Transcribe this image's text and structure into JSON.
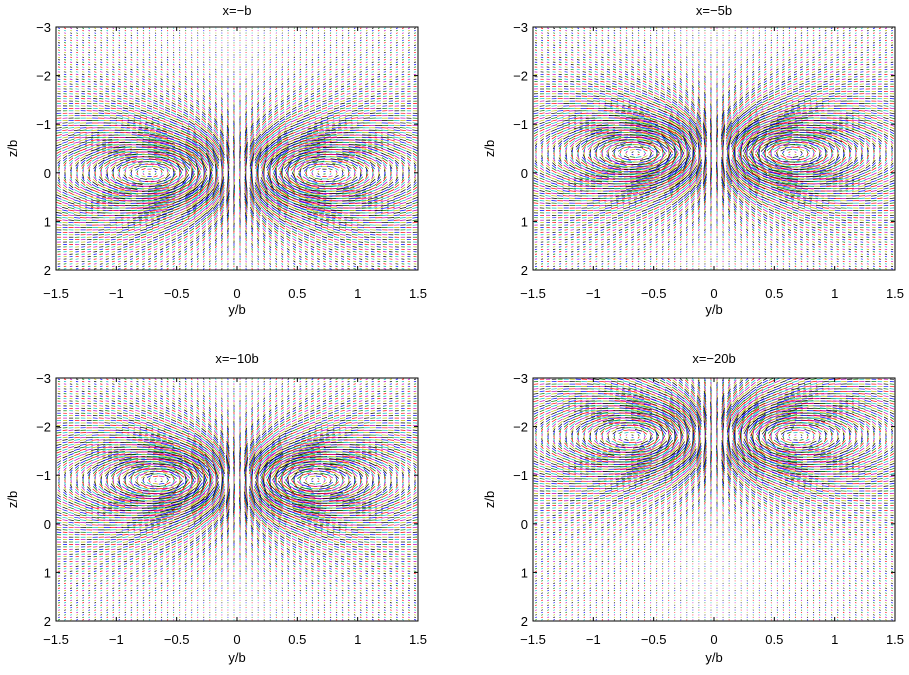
{
  "colors": [
    "#0000ff",
    "#008000",
    "#ff0000",
    "#00bfbf",
    "#bf00bf",
    "#bfbf00",
    "#000000"
  ],
  "chart_data": [
    {
      "type": "quiver",
      "title": "x=−b",
      "xlabel": "y/b",
      "ylabel": "z/b",
      "xlim": [
        -1.5,
        1.5
      ],
      "ylim": [
        -3,
        2
      ],
      "y_axis_reversed": true,
      "xticks": [
        "−1.5",
        "−1",
        "−0.5",
        "0",
        "0.5",
        "1",
        "1.5"
      ],
      "yticks": [
        "−3",
        "−2",
        "−1",
        "0",
        "1",
        "2"
      ],
      "vortices": [
        {
          "y": -0.55,
          "z": 0.0,
          "circulation": 1
        },
        {
          "y": 0.55,
          "z": 0.0,
          "circulation": -1
        }
      ],
      "vortex_core_radius": 0.45,
      "max_arrow_length": 0.42,
      "grid_spacing": 0.05
    },
    {
      "type": "quiver",
      "title": "x=−5b",
      "xlabel": "y/b",
      "ylabel": "z/b",
      "xlim": [
        -1.5,
        1.5
      ],
      "ylim": [
        -3,
        2
      ],
      "y_axis_reversed": true,
      "xticks": [
        "−1.5",
        "−1",
        "−0.5",
        "0",
        "0.5",
        "1",
        "1.5"
      ],
      "yticks": [
        "−3",
        "−2",
        "−1",
        "0",
        "1",
        "2"
      ],
      "vortices": [
        {
          "y": -0.5,
          "z": -0.4,
          "circulation": 1
        },
        {
          "y": 0.5,
          "z": -0.4,
          "circulation": -1
        }
      ],
      "vortex_core_radius": 0.4,
      "max_arrow_length": 0.3,
      "grid_spacing": 0.05
    },
    {
      "type": "quiver",
      "title": "x=−10b",
      "xlabel": "y/b",
      "ylabel": "z/b",
      "xlim": [
        -1.5,
        1.5
      ],
      "ylim": [
        -3,
        2
      ],
      "y_axis_reversed": true,
      "xticks": [
        "−1.5",
        "−1",
        "−0.5",
        "0",
        "0.5",
        "1",
        "1.5"
      ],
      "yticks": [
        "−3",
        "−2",
        "−1",
        "0",
        "1",
        "2"
      ],
      "vortices": [
        {
          "y": -0.5,
          "z": -0.9,
          "circulation": 1
        },
        {
          "y": 0.5,
          "z": -0.9,
          "circulation": -1
        }
      ],
      "vortex_core_radius": 0.4,
      "max_arrow_length": 0.3,
      "grid_spacing": 0.05
    },
    {
      "type": "quiver",
      "title": "x=−20b",
      "xlabel": "y/b",
      "ylabel": "z/b",
      "xlim": [
        -1.5,
        1.5
      ],
      "ylim": [
        -3,
        2
      ],
      "y_axis_reversed": true,
      "xticks": [
        "−1.5",
        "−1",
        "−0.5",
        "0",
        "0.5",
        "1",
        "1.5"
      ],
      "yticks": [
        "−3",
        "−2",
        "−1",
        "0",
        "1",
        "2"
      ],
      "vortices": [
        {
          "y": -0.5,
          "z": -1.8,
          "circulation": 1
        },
        {
          "y": 0.5,
          "z": -1.8,
          "circulation": -1
        }
      ],
      "vortex_core_radius": 0.45,
      "max_arrow_length": 0.3,
      "grid_spacing": 0.05
    }
  ]
}
